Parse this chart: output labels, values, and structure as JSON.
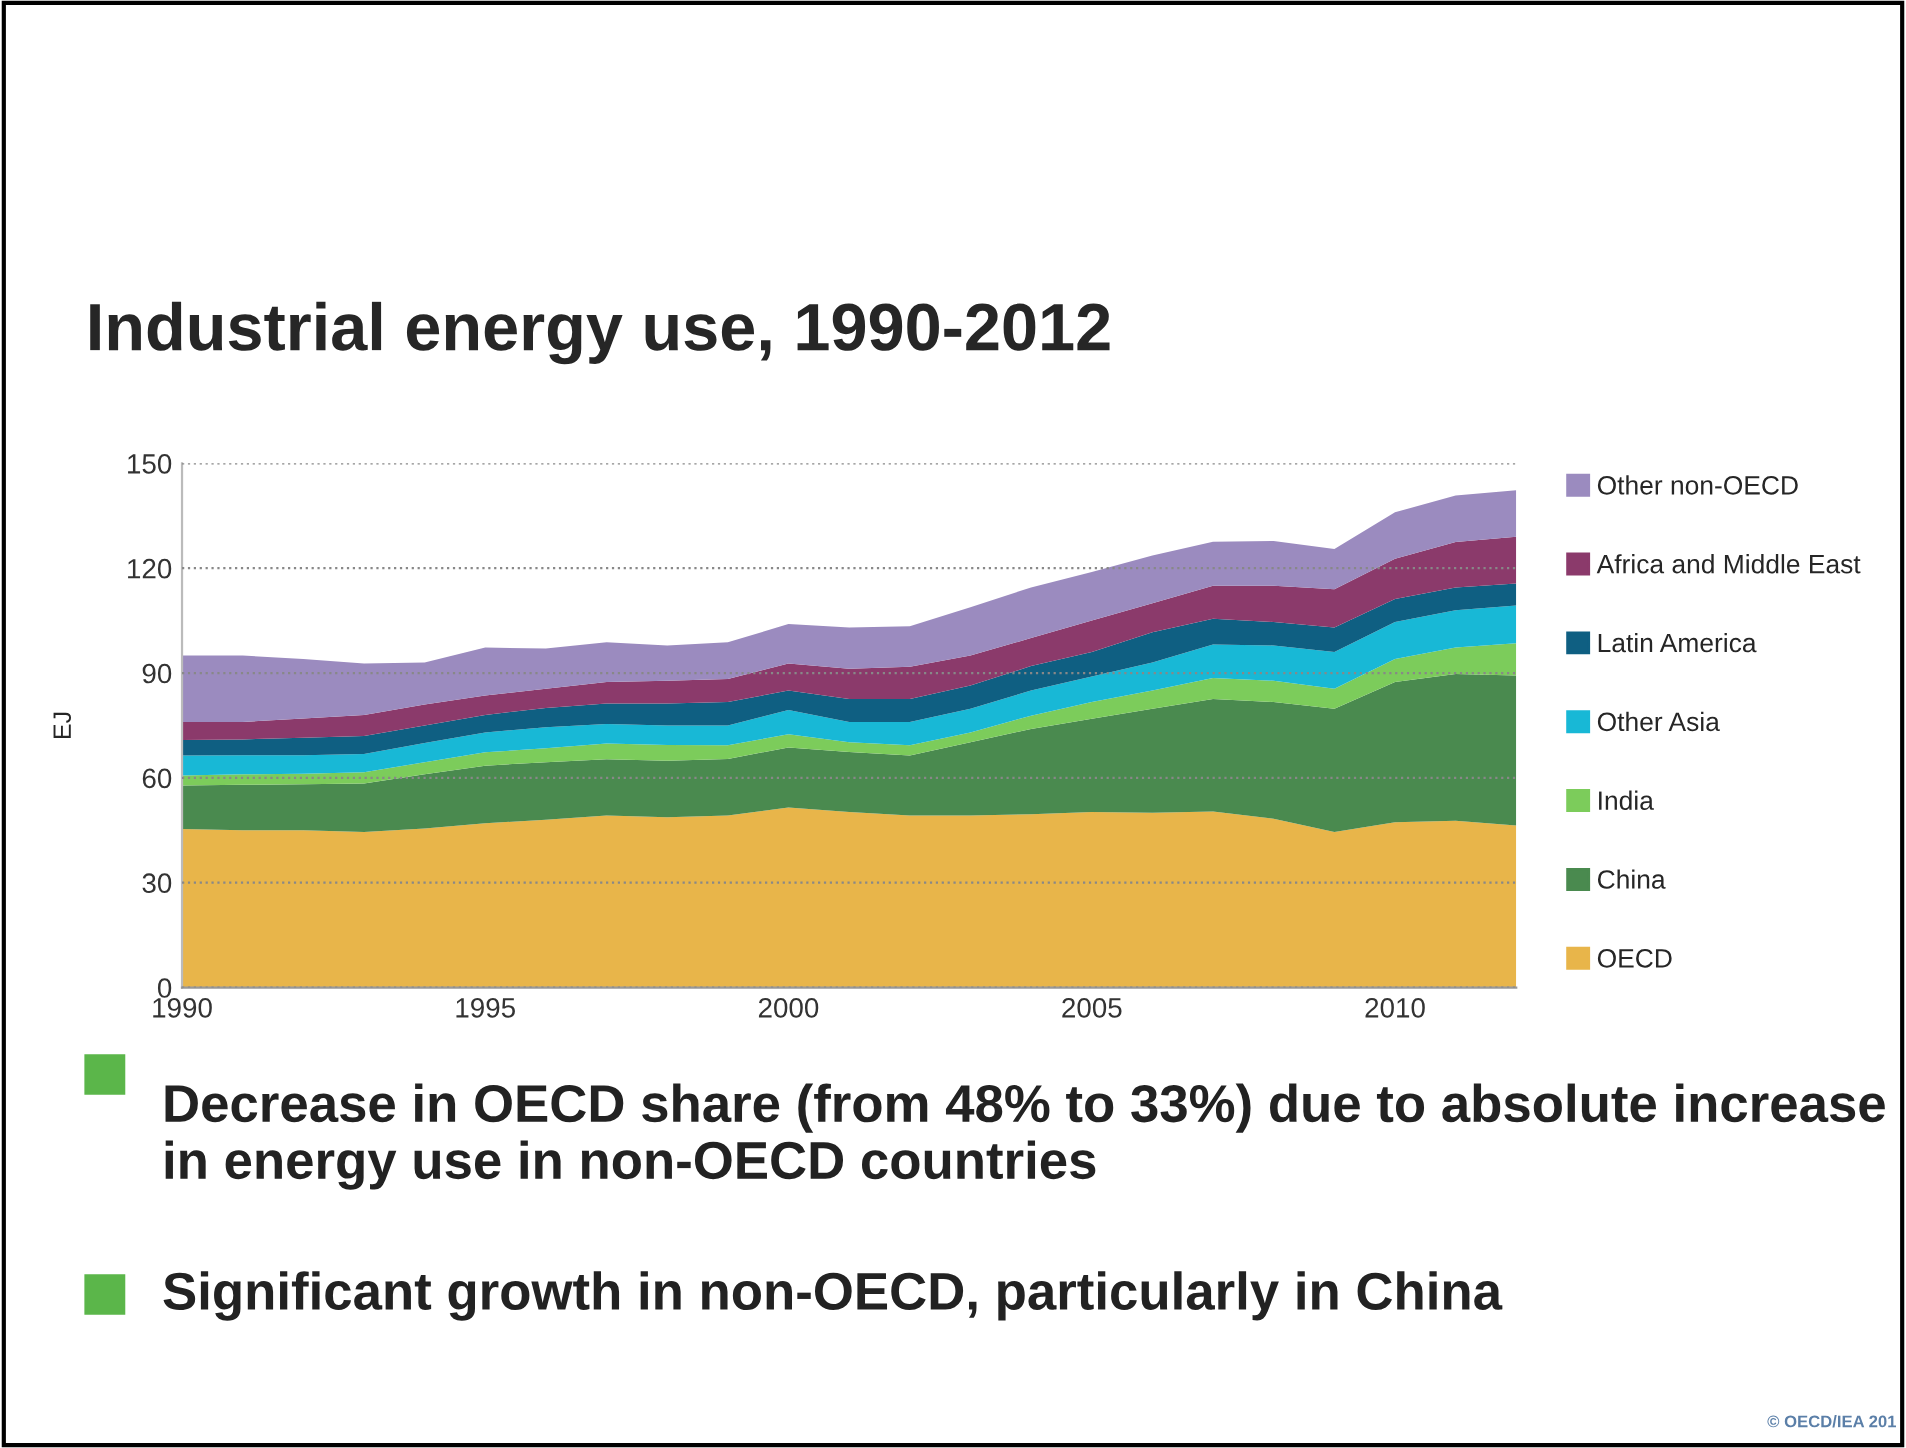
{
  "chart_data": {
    "type": "area",
    "stacked": true,
    "title": "Industrial energy use, 1990-2012",
    "ylabel": "EJ",
    "x": [
      "1990",
      "1991",
      "1992",
      "1993",
      "1994",
      "1995",
      "1996",
      "1997",
      "1998",
      "1999",
      "2000",
      "2001",
      "2002",
      "2003",
      "2004",
      "2005",
      "2006",
      "2007",
      "2008",
      "2009",
      "2010",
      "2011",
      "2012"
    ],
    "xlim": [
      "1990",
      "2012"
    ],
    "xticks": [
      {
        "value": "1990",
        "label": "1990"
      },
      {
        "value": "1995",
        "label": "1995"
      },
      {
        "value": "2000",
        "label": "2000"
      },
      {
        "value": "2005",
        "label": "2005"
      },
      {
        "value": "2010",
        "label": "2010"
      }
    ],
    "ylim": [
      0,
      150
    ],
    "yticks": [
      0,
      30,
      60,
      90,
      120,
      150
    ],
    "grid": "y",
    "legend": "right",
    "series": [
      {
        "name": "OECD",
        "color": "#e8b54a",
        "values": [
          45.4,
          45,
          45,
          44.5,
          45.5,
          47,
          48,
          49.2,
          48.7,
          49.2,
          51.5,
          50.2,
          49.2,
          49.2,
          49.6,
          50.2,
          50,
          50.4,
          48.3,
          44.5,
          47.3,
          47.7,
          46.4
        ]
      },
      {
        "name": "China",
        "color": "#4a8a4f",
        "values": [
          12.4,
          13,
          13.2,
          13.9,
          15.5,
          16.5,
          16.5,
          16.1,
          16.2,
          16.2,
          17.2,
          17.2,
          17.2,
          21,
          24.4,
          26.7,
          29.8,
          32.2,
          33.4,
          35.3,
          40.1,
          42,
          42.9
        ]
      },
      {
        "name": "India",
        "color": "#7ccc5b",
        "values": [
          2.9,
          3,
          3,
          3.2,
          3.5,
          3.8,
          4,
          4.5,
          4.5,
          3.9,
          3.8,
          2.8,
          2.9,
          2.8,
          3.8,
          4.8,
          5.2,
          6,
          6.1,
          5.7,
          6.6,
          7.6,
          9.2
        ]
      },
      {
        "name": "Other Asia",
        "color": "#18b8d6",
        "values": [
          5.7,
          5.5,
          5.3,
          5.2,
          5.5,
          5.7,
          6,
          5.6,
          5.6,
          5.7,
          6.9,
          5.8,
          6.7,
          6.8,
          7.2,
          7.3,
          8,
          9.6,
          10.1,
          10.5,
          10.6,
          10.7,
          10.8
        ]
      },
      {
        "name": "Latin America",
        "color": "#0f5f82",
        "values": [
          4.4,
          4.5,
          5,
          5.2,
          5,
          5,
          5.5,
          5.9,
          6.3,
          6.7,
          5.6,
          6.6,
          6.6,
          6.6,
          7,
          7,
          8.7,
          7.3,
          6.7,
          7,
          6.6,
          6.5,
          6.3
        ]
      },
      {
        "name": "Africa and Middle East",
        "color": "#8b3a6b",
        "values": [
          5.2,
          5,
          5.5,
          6,
          6,
          5.6,
          5.5,
          6.1,
          6.5,
          6.6,
          7.7,
          8.6,
          9.2,
          8.6,
          8,
          9,
          8.3,
          9.5,
          10.4,
          11,
          11.5,
          13,
          13.4
        ]
      },
      {
        "name": "Other non-OECD",
        "color": "#9b8bbf",
        "values": [
          19,
          19,
          17,
          14.7,
          12,
          13.7,
          11.5,
          11.4,
          10.1,
          10.5,
          11.3,
          11.8,
          11.6,
          13.8,
          14.5,
          13.9,
          13.6,
          12.6,
          12.8,
          11.5,
          13.3,
          13.3,
          13.3
        ]
      }
    ],
    "annotations": [
      "Decrease in OECD share (from 48% to 33%) due to absolute increase in energy use in non-OECD countries",
      "Significant growth in non-OECD, particularly in China",
      "© OECD/IEA 201"
    ]
  }
}
